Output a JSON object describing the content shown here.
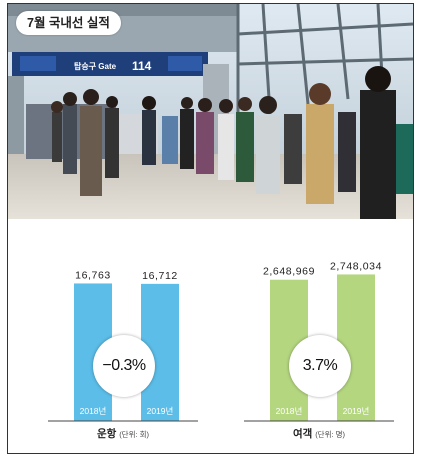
{
  "header": {
    "title": "7월 국내선 실적",
    "gate_label": "탑승구 Gate",
    "gate_number": "114"
  },
  "chart_data": [
    {
      "type": "bar",
      "categories": [
        "2018년",
        "2019년"
      ],
      "values": [
        16763,
        16712
      ],
      "value_labels": [
        "16,763",
        "16,712"
      ],
      "change_label": "−0.3%",
      "caption": "운항",
      "unit": "(단위: 회)",
      "color": "#5bbde8",
      "ylim": [
        0,
        19500
      ]
    },
    {
      "type": "bar",
      "categories": [
        "2018년",
        "2019년"
      ],
      "values": [
        2648969,
        2748034
      ],
      "value_labels": [
        "2,648,969",
        "2,748,034"
      ],
      "change_label": "3.7%",
      "caption": "여객",
      "unit": "(단위: 명)",
      "color": "#b4d67f",
      "ylim": [
        0,
        3000000
      ]
    }
  ]
}
